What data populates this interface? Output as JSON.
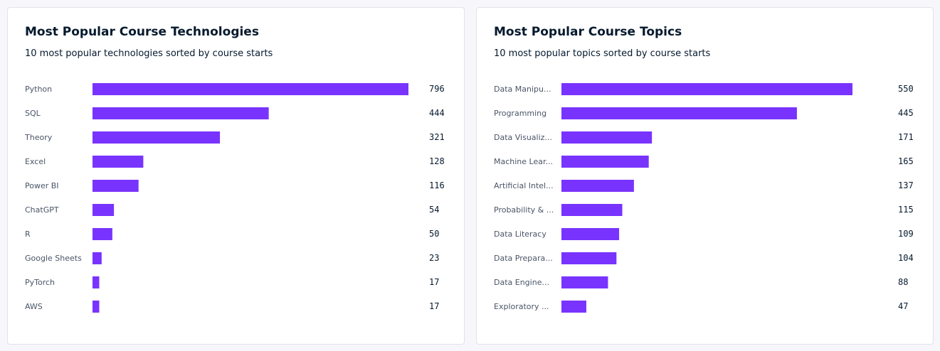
{
  "colors": {
    "bar": "#7933ff",
    "background": "#f7f7fb",
    "card": "#ffffff",
    "text": "#05192d"
  },
  "chart_data": [
    {
      "type": "bar",
      "orientation": "horizontal",
      "title": "Most Popular Course Technologies",
      "subtitle": "10 most popular technologies sorted by course starts",
      "categories": [
        "Python",
        "SQL",
        "Theory",
        "Excel",
        "Power BI",
        "ChatGPT",
        "R",
        "Google Sheets",
        "PyTorch",
        "AWS"
      ],
      "values": [
        796,
        444,
        321,
        128,
        116,
        54,
        50,
        23,
        17,
        17
      ],
      "xlim": [
        0,
        796
      ],
      "grid": false
    },
    {
      "type": "bar",
      "orientation": "horizontal",
      "title": "Most Popular Course Topics",
      "subtitle": "10 most popular topics sorted by course starts",
      "categories": [
        "Data Manipu...",
        "Programming",
        "Data Visualiz...",
        "Machine Lear...",
        "Artificial Intel...",
        "Probability & ...",
        "Data Literacy",
        "Data Prepara...",
        "Data Engine...",
        "Exploratory ..."
      ],
      "values": [
        550,
        445,
        171,
        165,
        137,
        115,
        109,
        104,
        88,
        47
      ],
      "xlim": [
        0,
        550
      ],
      "grid": false
    }
  ]
}
